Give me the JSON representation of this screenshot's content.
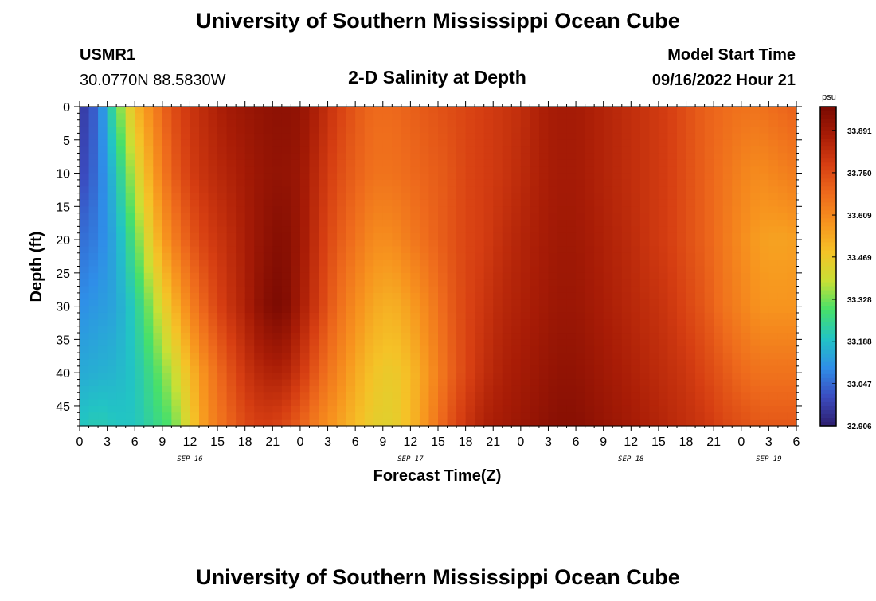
{
  "page": {
    "title": "University of Southern Mississippi Ocean Cube",
    "footer_title": "University of Southern Mississippi Ocean Cube",
    "station_id": "USMR1",
    "station_location": "30.0770N  88.5830W",
    "plot_title": "2-D Salinity at Depth",
    "model_start_label": "Model Start Time",
    "model_start_value": "09/16/2022 Hour 21"
  },
  "chart_data": {
    "type": "heatmap",
    "title": "2-D Salinity at Depth",
    "xlabel": "Forecast Time(Z)",
    "ylabel": "Depth (ft)",
    "x_hours": [
      0,
      3,
      6,
      9,
      12,
      15,
      18,
      21,
      0,
      3,
      6,
      9,
      12,
      15,
      18,
      21,
      0,
      3,
      6,
      9,
      12,
      15,
      18,
      21,
      0,
      3,
      6
    ],
    "x_tick_labels": [
      "0",
      "3",
      "6",
      "9",
      "12",
      "15",
      "18",
      "21",
      "0",
      "3",
      "6",
      "9",
      "12",
      "15",
      "18",
      "21",
      "0",
      "3",
      "6",
      "9",
      "12",
      "15",
      "18",
      "21",
      "0",
      "3",
      "6"
    ],
    "date_labels": [
      {
        "label": "SEP 16",
        "hour_index": 4
      },
      {
        "label": "SEP 17",
        "hour_index": 12
      },
      {
        "label": "SEP 18",
        "hour_index": 20
      },
      {
        "label": "SEP 19",
        "hour_index": 25
      }
    ],
    "x_range_hours": [
      0,
      78
    ],
    "y_ticks": [
      0,
      5,
      10,
      15,
      20,
      25,
      30,
      35,
      40,
      45
    ],
    "y_range": [
      0,
      48
    ],
    "y_inverted": true,
    "colorbar": {
      "unit": "psu",
      "min": 32.906,
      "max": 33.97,
      "tick_values": [
        32.906,
        33.047,
        33.188,
        33.328,
        33.469,
        33.609,
        33.75,
        33.891
      ],
      "tick_labels": [
        "32.906",
        "33.047",
        "33.188",
        "33.328",
        "33.469",
        "33.609",
        "33.750",
        "33.891"
      ],
      "colors": [
        "#2d1e6e",
        "#3b4cc0",
        "#2f8ee8",
        "#22c4c4",
        "#47e06a",
        "#c8e035",
        "#f5c227",
        "#f7931e",
        "#ee6a1c",
        "#d63e12",
        "#a81c06",
        "#7a0a02"
      ]
    },
    "salinity_profiles": {
      "depths": [
        0,
        10,
        20,
        30,
        40,
        48
      ],
      "times": [
        0,
        2,
        4,
        6,
        8,
        10,
        12,
        14,
        16,
        18,
        20,
        22,
        24,
        26,
        28,
        30,
        32,
        34,
        36,
        38,
        40,
        42,
        44,
        46,
        48,
        50,
        52,
        54,
        56,
        58,
        60,
        62,
        64,
        66,
        68,
        70,
        72,
        74,
        76,
        78
      ],
      "values": [
        [
          32.95,
          32.98,
          33.05,
          33.1,
          33.15,
          33.2
        ],
        [
          33.05,
          33.06,
          33.08,
          33.12,
          33.16,
          33.22
        ],
        [
          33.3,
          33.2,
          33.15,
          33.14,
          33.17,
          33.2
        ],
        [
          33.5,
          33.4,
          33.3,
          33.22,
          33.2,
          33.2
        ],
        [
          33.62,
          33.56,
          33.48,
          33.36,
          33.28,
          33.25
        ],
        [
          33.74,
          33.7,
          33.62,
          33.5,
          33.38,
          33.3
        ],
        [
          33.8,
          33.78,
          33.72,
          33.62,
          33.5,
          33.45
        ],
        [
          33.84,
          33.82,
          33.78,
          33.72,
          33.62,
          33.6
        ],
        [
          33.88,
          33.85,
          33.82,
          33.8,
          33.72,
          33.68
        ],
        [
          33.9,
          33.88,
          33.87,
          33.86,
          33.8,
          33.75
        ],
        [
          33.92,
          33.91,
          33.92,
          33.94,
          33.85,
          33.78
        ],
        [
          33.93,
          33.92,
          33.95,
          33.97,
          33.86,
          33.76
        ],
        [
          33.92,
          33.9,
          33.9,
          33.88,
          33.8,
          33.7
        ],
        [
          33.85,
          33.82,
          33.8,
          33.78,
          33.7,
          33.62
        ],
        [
          33.78,
          33.75,
          33.72,
          33.68,
          33.62,
          33.56
        ],
        [
          33.72,
          33.7,
          33.66,
          33.6,
          33.54,
          33.5
        ],
        [
          33.68,
          33.66,
          33.6,
          33.54,
          33.48,
          33.45
        ],
        [
          33.68,
          33.66,
          33.6,
          33.52,
          33.46,
          33.44
        ],
        [
          33.7,
          33.68,
          33.64,
          33.56,
          33.5,
          33.5
        ],
        [
          33.72,
          33.7,
          33.68,
          33.62,
          33.58,
          33.6
        ],
        [
          33.74,
          33.72,
          33.72,
          33.7,
          33.68,
          33.72
        ],
        [
          33.76,
          33.76,
          33.76,
          33.76,
          33.76,
          33.8
        ],
        [
          33.78,
          33.78,
          33.78,
          33.8,
          33.82,
          33.86
        ],
        [
          33.8,
          33.8,
          33.82,
          33.84,
          33.86,
          33.88
        ],
        [
          33.82,
          33.83,
          33.85,
          33.86,
          33.88,
          33.9
        ],
        [
          33.86,
          33.86,
          33.87,
          33.88,
          33.9,
          33.92
        ],
        [
          33.88,
          33.88,
          33.89,
          33.9,
          33.92,
          33.94
        ],
        [
          33.88,
          33.88,
          33.89,
          33.9,
          33.92,
          33.94
        ],
        [
          33.86,
          33.86,
          33.87,
          33.88,
          33.9,
          33.92
        ],
        [
          33.84,
          33.84,
          33.85,
          33.86,
          33.88,
          33.9
        ],
        [
          33.82,
          33.82,
          33.83,
          33.84,
          33.86,
          33.88
        ],
        [
          33.8,
          33.8,
          33.8,
          33.82,
          33.84,
          33.86
        ],
        [
          33.78,
          33.78,
          33.78,
          33.8,
          33.82,
          33.84
        ],
        [
          33.74,
          33.74,
          33.74,
          33.76,
          33.8,
          33.82
        ],
        [
          33.7,
          33.7,
          33.7,
          33.72,
          33.76,
          33.8
        ],
        [
          33.68,
          33.66,
          33.65,
          33.66,
          33.72,
          33.76
        ],
        [
          33.66,
          33.62,
          33.6,
          33.62,
          33.68,
          33.74
        ],
        [
          33.66,
          33.6,
          33.56,
          33.58,
          33.66,
          33.72
        ],
        [
          33.68,
          33.62,
          33.55,
          33.58,
          33.66,
          33.72
        ],
        [
          33.7,
          33.64,
          33.56,
          33.58,
          33.66,
          33.72
        ]
      ]
    }
  }
}
